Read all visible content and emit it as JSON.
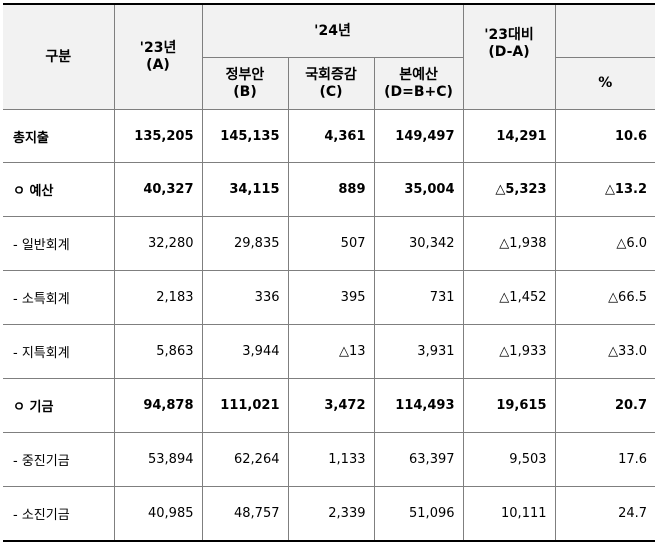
{
  "header": {
    "category": "구분",
    "col23": {
      "year": "'23년",
      "code": "(A)"
    },
    "group24": "'24년",
    "gov": {
      "label": "정부안",
      "code": "(B)"
    },
    "assembly": {
      "label": "국회증감",
      "code": "(C)"
    },
    "main": {
      "label": "본예산",
      "code": "(D=B+C)"
    },
    "compare": {
      "label": "'23대비",
      "code": "(D-A)"
    },
    "percent": "%"
  },
  "rows": [
    {
      "label": "총지출",
      "a": "135,205",
      "b": "145,135",
      "c": "4,361",
      "d": "149,497",
      "diff": "14,291",
      "pct": "10.6",
      "bold": true
    },
    {
      "label": "ㅇ 예산",
      "a": "40,327",
      "b": "34,115",
      "c": "889",
      "d": "35,004",
      "diff": "△5,323",
      "pct": "△13.2",
      "bold": true
    },
    {
      "label": "- 일반회계",
      "a": "32,280",
      "b": "29,835",
      "c": "507",
      "d": "30,342",
      "diff": "△1,938",
      "pct": "△6.0",
      "bold": false
    },
    {
      "label": "- 소특회계",
      "a": "2,183",
      "b": "336",
      "c": "395",
      "d": "731",
      "diff": "△1,452",
      "pct": "△66.5",
      "bold": false
    },
    {
      "label": "- 지특회계",
      "a": "5,863",
      "b": "3,944",
      "c": "△13",
      "d": "3,931",
      "diff": "△1,933",
      "pct": "△33.0",
      "bold": false
    },
    {
      "label": "ㅇ 기금",
      "a": "94,878",
      "b": "111,021",
      "c": "3,472",
      "d": "114,493",
      "diff": "19,615",
      "pct": "20.7",
      "bold": true
    },
    {
      "label": "- 중진기금",
      "a": "53,894",
      "b": "62,264",
      "c": "1,133",
      "d": "63,397",
      "diff": "9,503",
      "pct": "17.6",
      "bold": false
    },
    {
      "label": "- 소진기금",
      "a": "40,985",
      "b": "48,757",
      "c": "2,339",
      "d": "51,096",
      "diff": "10,111",
      "pct": "24.7",
      "bold": false
    }
  ]
}
